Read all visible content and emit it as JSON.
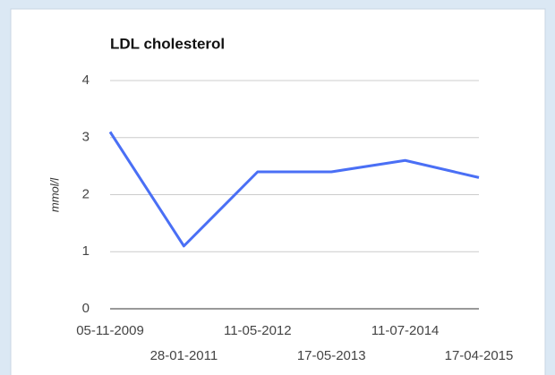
{
  "chart_data": {
    "type": "line",
    "title": "LDL cholesterol",
    "y_label": "mmol/l",
    "categories": [
      "05-11-2009",
      "28-01-2011",
      "11-05-2012",
      "17-05-2013",
      "11-07-2014",
      "17-04-2015"
    ],
    "series": [
      {
        "name": "LDL cholesterol",
        "color": "#4a6ff5",
        "values": [
          3.1,
          1.1,
          2.4,
          2.4,
          2.6,
          2.3
        ]
      }
    ],
    "ylim": [
      0,
      4
    ],
    "yticks": [
      0,
      1,
      2,
      3,
      4
    ],
    "grid": true
  }
}
